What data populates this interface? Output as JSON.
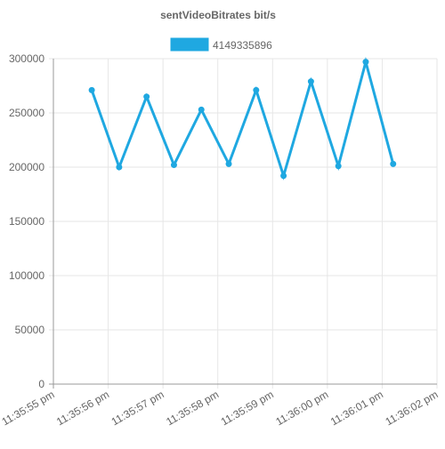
{
  "chart_data": {
    "type": "line",
    "title": "sentVideoBitrates bit/s",
    "xlabel": "",
    "ylabel": "",
    "x_ticks": [
      "11:35:55 pm",
      "11:35:56 pm",
      "11:35:57 pm",
      "11:35:58 pm",
      "11:35:59 pm",
      "11:36:00 pm",
      "11:36:01 pm",
      "11:36:02 pm"
    ],
    "y_ticks": [
      "0",
      "50000",
      "100000",
      "150000",
      "200000",
      "250000",
      "300000"
    ],
    "ylim": [
      0,
      300000
    ],
    "xlim": [
      "11:35:55.0",
      "11:36:02.0"
    ],
    "grid": true,
    "legend_position": "top",
    "series": [
      {
        "name": "4149335896",
        "color": "#1fa8e1",
        "x": [
          "11:35:55.7",
          "11:35:56.2",
          "11:35:56.7",
          "11:35:57.2",
          "11:35:57.7",
          "11:35:58.2",
          "11:35:58.7",
          "11:35:59.2",
          "11:35:59.7",
          "11:36:00.2",
          "11:36:00.7",
          "11:36:01.2"
        ],
        "values": [
          271000,
          200000,
          265000,
          202000,
          253000,
          203000,
          271000,
          192000,
          279000,
          201000,
          297000,
          203000
        ]
      }
    ]
  }
}
